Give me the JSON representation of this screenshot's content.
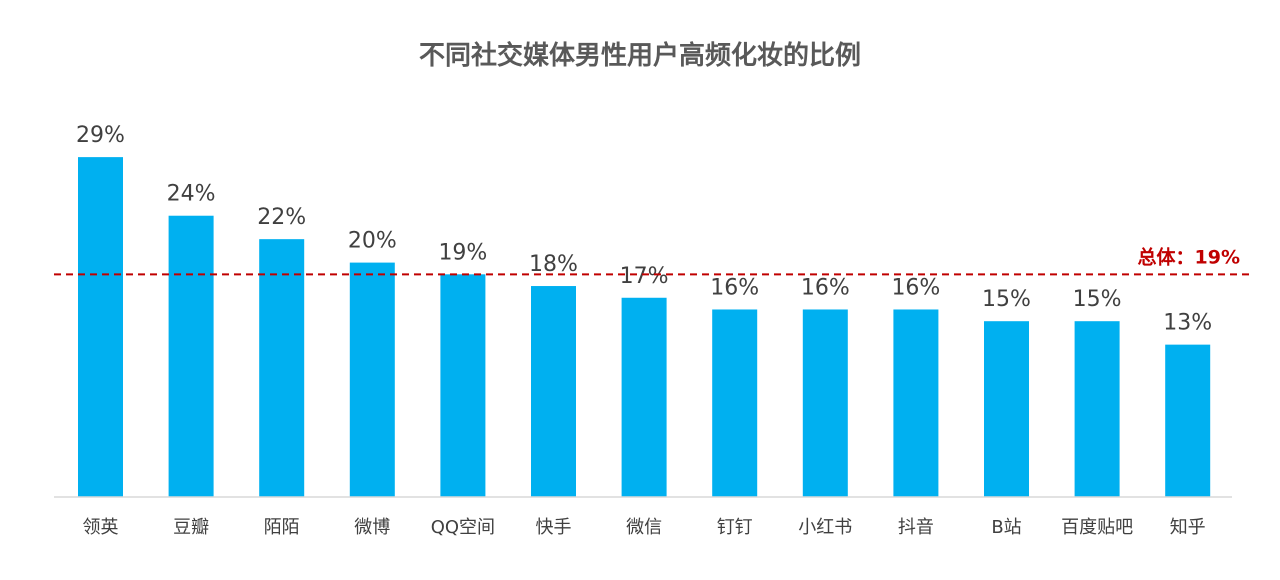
{
  "chart_data": {
    "type": "bar",
    "title": "不同社交媒体男性用户高频化妆的比例",
    "categories": [
      "领英",
      "豆瓣",
      "陌陌",
      "微博",
      "QQ空间",
      "快手",
      "微信",
      "钉钉",
      "小红书",
      "抖音",
      "B站",
      "百度贴吧",
      "知乎"
    ],
    "values": [
      29,
      24,
      22,
      20,
      19,
      18,
      17,
      16,
      16,
      16,
      15,
      15,
      13
    ],
    "value_labels": [
      "29%",
      "24%",
      "22%",
      "20%",
      "19%",
      "18%",
      "17%",
      "16%",
      "16%",
      "16%",
      "15%",
      "15%",
      "13%"
    ],
    "unit": "%",
    "ylim": [
      0,
      30
    ],
    "grid": false,
    "reference_line": {
      "value": 19,
      "label": "总体：19%",
      "color": "#c00000",
      "style": "dashed"
    },
    "colors": {
      "bar": "#00b0f0",
      "axis": "#d9d9d9",
      "text": "#404040",
      "title": "#595959"
    }
  }
}
